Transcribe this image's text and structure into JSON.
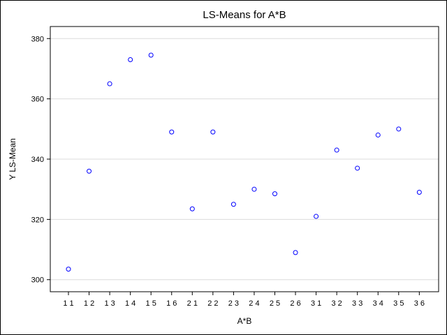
{
  "chart_data": {
    "type": "scatter",
    "title": "LS-Means for A*B",
    "xlabel": "A*B",
    "ylabel": "Y LS-Mean",
    "categories": [
      "1 1",
      "1 2",
      "1 3",
      "1 4",
      "1 5",
      "1 6",
      "2 1",
      "2 2",
      "2 3",
      "2 4",
      "2 5",
      "2 6",
      "3 1",
      "3 2",
      "3 3",
      "3 4",
      "3 5",
      "3 6"
    ],
    "values": [
      303.5,
      336,
      365,
      373,
      374.5,
      349,
      323.5,
      349,
      325,
      330,
      328.5,
      309,
      321,
      343,
      337,
      348,
      350,
      329
    ],
    "ylim": [
      296,
      384
    ],
    "yticks": [
      300,
      320,
      340,
      360,
      380
    ],
    "grid": true,
    "marker_color": "#0000ff",
    "grid_color": "#dcdcdc"
  }
}
